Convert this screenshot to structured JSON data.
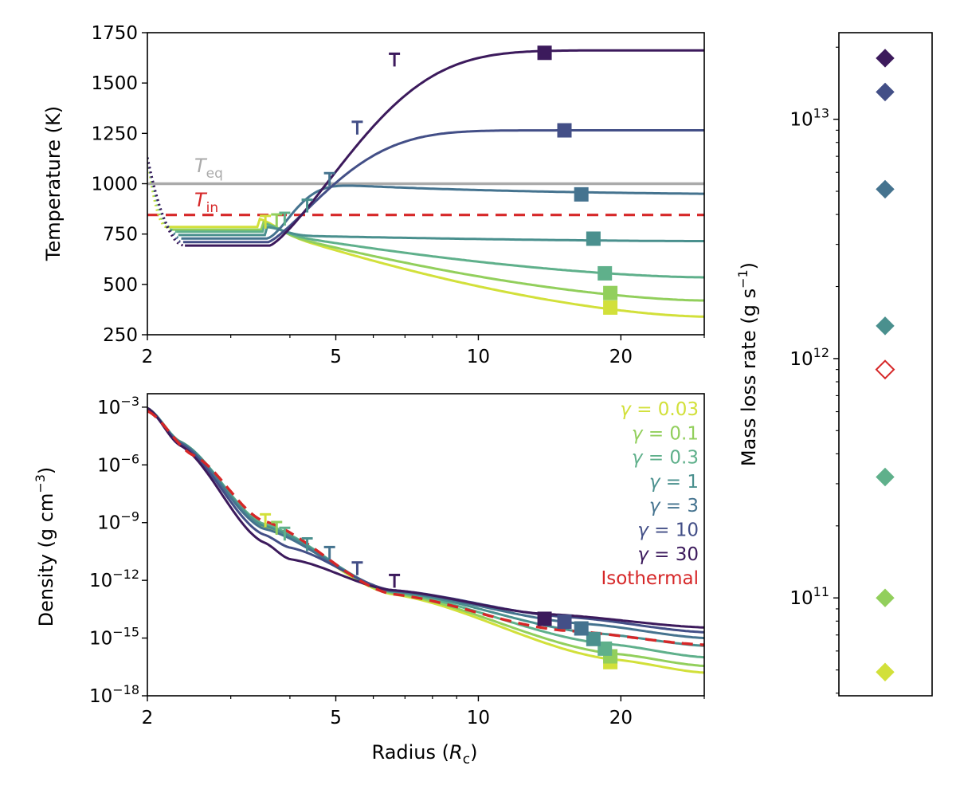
{
  "figure": {
    "panels": {
      "temperature": {
        "ylabel_main": "Temperature",
        "ylabel_unit": "(K)",
        "annotations": [
          {
            "symbol": "T",
            "subscript": "eq",
            "color": "#aaaaaa"
          },
          {
            "symbol": "T",
            "subscript": "in",
            "color": "#d62728"
          }
        ]
      },
      "density": {
        "ylabel_prefix": "Density (g cm",
        "ylabel_exp": "−3",
        "ylabel_suffix": ")",
        "xlabel_prefix": "Radius (",
        "xlabel_symbol": "R",
        "xlabel_sub": "c",
        "xlabel_suffix": ")"
      },
      "massloss": {
        "ylabel_prefix": "Mass loss rate (g s",
        "ylabel_exp": "−1",
        "ylabel_suffix": ")"
      }
    }
  },
  "chart_data": [
    {
      "type": "line",
      "panel": "temperature",
      "xlabel": "",
      "ylabel": "Temperature (K)",
      "xscale": "log",
      "xlim": [
        2,
        30
      ],
      "ylim": [
        250,
        1750
      ],
      "xticks": [
        2,
        5,
        10,
        20
      ],
      "yticks": [
        250,
        500,
        750,
        1000,
        1250,
        1500,
        1750
      ],
      "reference_lines": [
        {
          "label": "T_eq",
          "y": 1000,
          "color": "#aaaaaa",
          "style": "solid"
        },
        {
          "label": "T_in",
          "y": 845,
          "color": "#d62728",
          "style": "dashed",
          "x_start": 2
        }
      ],
      "series": [
        {
          "gamma": "0.03",
          "color": "#d2e03a",
          "plateau": 785,
          "start_r": 2.2,
          "r_sonic": 3.55,
          "T_sonic": 785,
          "r_exo": 19,
          "T_exo": 385,
          "T_end": 340
        },
        {
          "gamma": "0.1",
          "color": "#92cf5c",
          "plateau": 772,
          "start_r": 2.25,
          "r_sonic": 3.75,
          "T_sonic": 792,
          "r_exo": 19,
          "T_exo": 457,
          "T_end": 420
        },
        {
          "gamma": "0.3",
          "color": "#5fb08b",
          "plateau": 762,
          "start_r": 2.3,
          "r_sonic": 3.9,
          "T_sonic": 800,
          "r_exo": 18.5,
          "T_exo": 555,
          "T_end": 535
        },
        {
          "gamma": "1",
          "color": "#4a908e",
          "plateau": 745,
          "start_r": 2.33,
          "r_sonic": 4.35,
          "T_sonic": 865,
          "r_exo": 17.5,
          "T_exo": 727,
          "T_end": 715
        },
        {
          "gamma": "3",
          "color": "#45738f",
          "plateau": 728,
          "start_r": 2.36,
          "r_sonic": 4.85,
          "T_sonic": 997,
          "r_exo": 16.5,
          "T_exo": 947,
          "T_end": 940
        },
        {
          "gamma": "10",
          "color": "#434f87",
          "plateau": 710,
          "start_r": 2.38,
          "r_sonic": 5.55,
          "T_sonic": 1252,
          "r_exo": 15.2,
          "T_exo": 1265,
          "T_end": 1265
        },
        {
          "gamma": "30",
          "color": "#3c1a5c",
          "plateau": 693,
          "start_r": 2.4,
          "r_sonic": 6.65,
          "T_sonic": 1590,
          "r_exo": 13.8,
          "T_exo": 1650,
          "T_end": 1662
        }
      ]
    },
    {
      "type": "line",
      "panel": "density",
      "xlabel": "Radius (R_c)",
      "ylabel": "Density (g cm^-3)",
      "xscale": "log",
      "yscale": "log",
      "xlim": [
        2,
        30
      ],
      "ylim": [
        1e-18,
        0.005
      ],
      "xticks": [
        2,
        5,
        10,
        20
      ],
      "ytick_exponents": [
        -3,
        -6,
        -9,
        -12,
        -15,
        -18
      ],
      "series": [
        {
          "name": "γ = 0.03",
          "color": "#d2e03a",
          "logrho_knots": [
            [
              2.0,
              -3.05
            ],
            [
              2.35,
              -4.8
            ],
            [
              3.5,
              -9.2
            ],
            [
              6.5,
              -12.7
            ],
            [
              19,
              -16.1
            ],
            [
              30,
              -16.8
            ]
          ],
          "sonic": [
            3.55,
            -9.15
          ],
          "exo": [
            19,
            -16.25
          ]
        },
        {
          "name": "γ = 0.1",
          "color": "#92cf5c",
          "logrho_knots": [
            [
              2.0,
              -3.05
            ],
            [
              2.35,
              -4.8
            ],
            [
              3.5,
              -9.1
            ],
            [
              6.5,
              -12.65
            ],
            [
              19,
              -15.8
            ],
            [
              30,
              -16.45
            ]
          ],
          "sonic": [
            3.75,
            -9.55
          ],
          "exo": [
            19,
            -15.95
          ]
        },
        {
          "name": "γ = 0.3",
          "color": "#5fb08b",
          "logrho_knots": [
            [
              2.0,
              -3.05
            ],
            [
              2.35,
              -4.8
            ],
            [
              3.5,
              -9.05
            ],
            [
              6.5,
              -12.6
            ],
            [
              18.5,
              -15.3
            ],
            [
              30,
              -16.0
            ]
          ],
          "sonic": [
            3.9,
            -9.85
          ],
          "exo": [
            18.5,
            -15.55
          ]
        },
        {
          "name": "γ = 1",
          "color": "#4a908e",
          "logrho_knots": [
            [
              2.0,
              -3.05
            ],
            [
              2.35,
              -4.8
            ],
            [
              3.5,
              -9.15
            ],
            [
              6.5,
              -12.55
            ],
            [
              17.5,
              -14.75
            ],
            [
              30,
              -15.4
            ]
          ],
          "sonic": [
            4.35,
            -10.4
          ],
          "exo": [
            17.5,
            -15.05
          ]
        },
        {
          "name": "γ = 3",
          "color": "#45738f",
          "logrho_knots": [
            [
              2.0,
              -3.05
            ],
            [
              2.35,
              -4.85
            ],
            [
              3.5,
              -9.3
            ],
            [
              6.5,
              -12.55
            ],
            [
              16.5,
              -14.25
            ],
            [
              30,
              -15.0
            ]
          ],
          "sonic": [
            4.85,
            -10.85
          ],
          "exo": [
            16.5,
            -14.5
          ]
        },
        {
          "name": "γ = 10",
          "color": "#434f87",
          "logrho_knots": [
            [
              2.0,
              -3.05
            ],
            [
              2.35,
              -4.9
            ],
            [
              3.5,
              -9.6
            ],
            [
              4.0,
              -10.3
            ],
            [
              6.5,
              -12.5
            ],
            [
              15.2,
              -13.9
            ],
            [
              30,
              -14.7
            ]
          ],
          "sonic": [
            5.55,
            -11.65
          ],
          "exo": [
            15.2,
            -14.15
          ]
        },
        {
          "name": "γ = 30",
          "color": "#3c1a5c",
          "logrho_knots": [
            [
              2.0,
              -3.05
            ],
            [
              2.35,
              -5.0
            ],
            [
              3.5,
              -10.0
            ],
            [
              4.0,
              -10.9
            ],
            [
              6.5,
              -12.5
            ],
            [
              13.8,
              -13.75
            ],
            [
              30,
              -14.45
            ]
          ],
          "sonic": [
            6.65,
            -12.3
          ],
          "exo": [
            13.8,
            -14.0
          ]
        },
        {
          "name": "Isothermal",
          "color": "#d62728",
          "style": "dashed",
          "logrho_knots": [
            [
              2.0,
              -3.2
            ],
            [
              2.5,
              -5.5
            ],
            [
              3.5,
              -8.9
            ],
            [
              6.5,
              -12.7
            ],
            [
              15,
              -14.6
            ],
            [
              30,
              -15.35
            ]
          ]
        }
      ],
      "legend": {
        "placement": "upper right",
        "entries": [
          {
            "prefix": "γ",
            "text": " = 0.03",
            "color": "#d2e03a"
          },
          {
            "prefix": "γ",
            "text": " = 0.1",
            "color": "#92cf5c"
          },
          {
            "prefix": "γ",
            "text": " = 0.3",
            "color": "#5fb08b"
          },
          {
            "prefix": "γ",
            "text": " = 1",
            "color": "#4a908e"
          },
          {
            "prefix": "γ",
            "text": " = 3",
            "color": "#45738f"
          },
          {
            "prefix": "γ",
            "text": " = 10",
            "color": "#434f87"
          },
          {
            "prefix": "γ",
            "text": " = 30",
            "color": "#3c1a5c"
          },
          {
            "prefix": "",
            "text": "Isothermal",
            "color": "#d62728"
          }
        ]
      }
    },
    {
      "type": "scatter",
      "panel": "massloss",
      "ylabel": "Mass loss rate (g s^-1)",
      "yscale": "log",
      "ylim": [
        39000000000.0,
        23000000000000.0
      ],
      "ytick_labels": [
        {
          "value": 100000000000.0,
          "mantissa": "10",
          "exp": "11"
        },
        {
          "value": 1000000000000.0,
          "mantissa": "10",
          "exp": "12"
        },
        {
          "value": 10000000000000.0,
          "mantissa": "10",
          "exp": "13"
        }
      ],
      "points": [
        {
          "label": "γ = 30",
          "value": 18000000000000.0,
          "color": "#3c1a5c",
          "filled": true
        },
        {
          "label": "γ = 10",
          "value": 13000000000000.0,
          "color": "#434f87",
          "filled": true
        },
        {
          "label": "γ = 3",
          "value": 5100000000000.0,
          "color": "#45738f",
          "filled": true
        },
        {
          "label": "γ = 1",
          "value": 1370000000000.0,
          "color": "#4a908e",
          "filled": true
        },
        {
          "label": "Isothermal",
          "value": 900000000000.0,
          "color": "#d62728",
          "filled": false
        },
        {
          "label": "γ = 0.3",
          "value": 320000000000.0,
          "color": "#5fb08b",
          "filled": true
        },
        {
          "label": "γ = 0.1",
          "value": 100000000000.0,
          "color": "#92cf5c",
          "filled": true
        },
        {
          "label": "γ = 0.03",
          "value": 49000000000.0,
          "color": "#d2e03a",
          "filled": true
        }
      ]
    }
  ]
}
